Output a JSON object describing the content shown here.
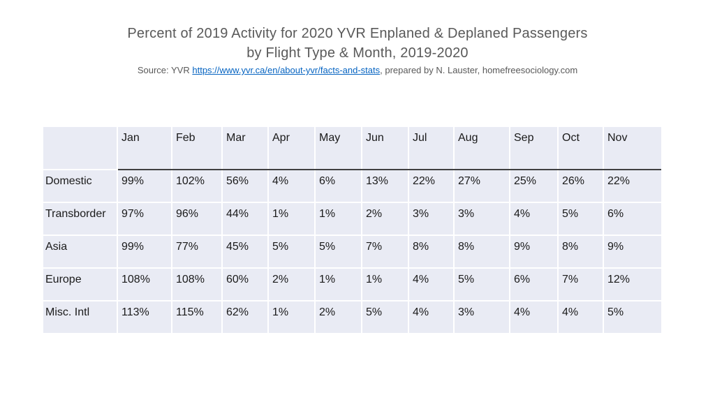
{
  "title": {
    "line1": "Percent of 2019 Activity for 2020 YVR Enplaned & Deplaned Passengers",
    "line2": "by Flight Type & Month, 2019-2020"
  },
  "source": {
    "prefix": "Source: YVR ",
    "link_text": "https://www.yvr.ca/en/about-yvr/facts-and-stats",
    "suffix": ", prepared by N. Lauster, homefreesociology.com"
  },
  "colors": {
    "title_text": "#595959",
    "link_blue": "#0563c1",
    "table_background": "#e9ebf4",
    "gridline_white": "#ffffff",
    "header_rule_dark": "#404040",
    "table_text": "#1a1a1a",
    "page_background": "#ffffff"
  },
  "chart_data": {
    "type": "table",
    "title": "Percent of 2019 Activity for 2020 YVR Enplaned & Deplaned Passengers by Flight Type & Month, 2019-2020",
    "columns": [
      "",
      "Jan",
      "Feb",
      "Mar",
      "Apr",
      "May",
      "Jun",
      "Jul",
      "Aug",
      "Sep",
      "Oct",
      "Nov"
    ],
    "rows": [
      {
        "label": "Domestic",
        "values": [
          "99%",
          "102%",
          "56%",
          "4%",
          "6%",
          "13%",
          "22%",
          "27%",
          "25%",
          "26%",
          "22%"
        ]
      },
      {
        "label": "Transborder",
        "values": [
          "97%",
          "96%",
          "44%",
          "1%",
          "1%",
          "2%",
          "3%",
          "3%",
          "4%",
          "5%",
          "6%"
        ]
      },
      {
        "label": "Asia",
        "values": [
          "99%",
          "77%",
          "45%",
          "5%",
          "5%",
          "7%",
          "8%",
          "8%",
          "9%",
          "8%",
          "9%"
        ]
      },
      {
        "label": "Europe",
        "values": [
          "108%",
          "108%",
          "60%",
          "2%",
          "1%",
          "1%",
          "4%",
          "5%",
          "6%",
          "7%",
          "12%"
        ]
      },
      {
        "label": "Misc. Intl",
        "values": [
          "113%",
          "115%",
          "62%",
          "1%",
          "2%",
          "5%",
          "4%",
          "3%",
          "4%",
          "4%",
          "5%"
        ]
      }
    ]
  }
}
